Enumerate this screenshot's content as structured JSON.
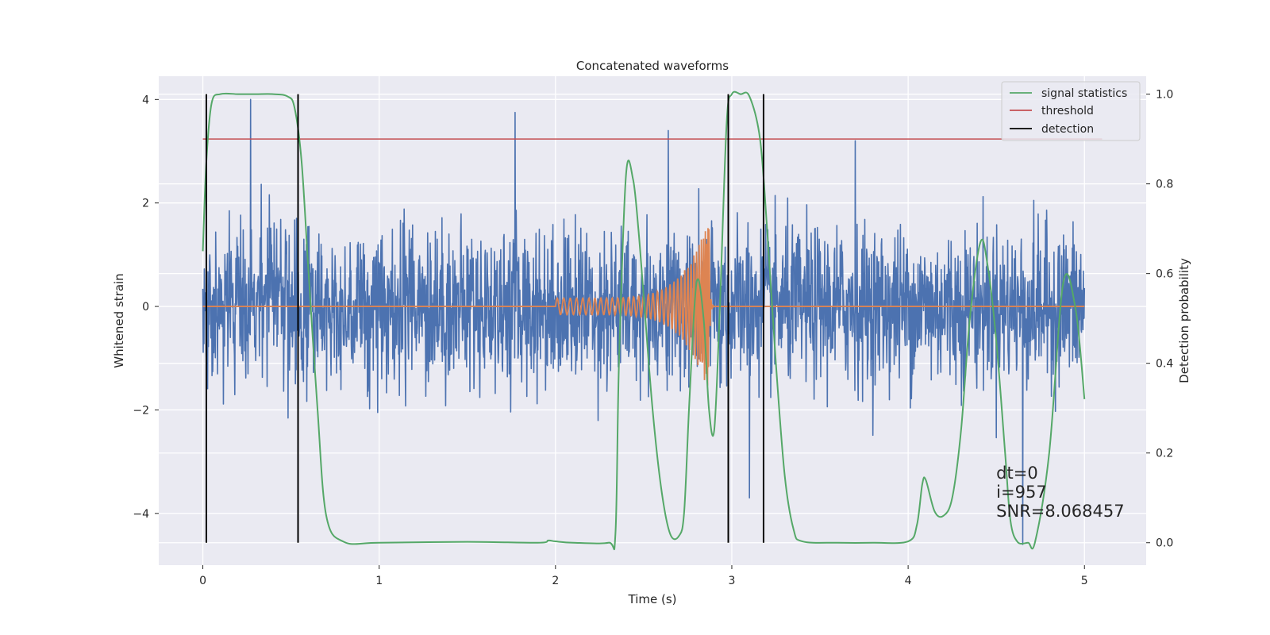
{
  "chart_data": {
    "type": "line",
    "title": "Concatenated waveforms",
    "xlabel": "Time (s)",
    "ylabel_left": "Whitened strain",
    "ylabel_right": "Detection probability",
    "xlim": [
      -0.25,
      5.35
    ],
    "ylim_left": [
      -5.0,
      4.45
    ],
    "ylim_right": [
      -0.05,
      1.04
    ],
    "x_ticks": [
      0,
      1,
      2,
      3,
      4,
      5
    ],
    "x_tick_labels": [
      "0",
      "1",
      "2",
      "3",
      "4",
      "5"
    ],
    "y_left_ticks": [
      -4,
      -2,
      0,
      2,
      4
    ],
    "y_left_tick_labels": [
      "−4",
      "−2",
      "0",
      "2",
      "4"
    ],
    "y_right_ticks": [
      0.0,
      0.2,
      0.4,
      0.6,
      0.8,
      1.0
    ],
    "y_right_tick_labels": [
      "0.0",
      "0.2",
      "0.4",
      "0.6",
      "0.8",
      "1.0"
    ],
    "grid": true,
    "legend_placement": "top-right",
    "legend": [
      {
        "label": "signal statistics",
        "color": "#55a868"
      },
      {
        "label": "threshold",
        "color": "#c44e52"
      },
      {
        "label": "detection",
        "color": "#000000"
      }
    ],
    "noise_series": {
      "color": "#4c72b0",
      "x_range": [
        0,
        5
      ],
      "typical_amplitude": 0.75,
      "peaks": [
        {
          "x": 0.27,
          "y": 4.0
        },
        {
          "x": 1.77,
          "y": 3.75
        },
        {
          "x": 2.64,
          "y": 3.4
        },
        {
          "x": 3.7,
          "y": 3.2
        },
        {
          "x": 4.65,
          "y": -4.6
        },
        {
          "x": 3.1,
          "y": -3.7
        }
      ]
    },
    "chirp_series": {
      "color": "#dd8452",
      "start_x": 2.0,
      "merger_x": 2.87,
      "end_x": 2.9,
      "peak_amplitude": 1.7
    },
    "signal_statistics": {
      "color": "#55a868",
      "axis": "right",
      "x": [
        0.0,
        0.02,
        0.05,
        0.1,
        0.2,
        0.3,
        0.4,
        0.48,
        0.52,
        0.56,
        0.6,
        0.65,
        0.7,
        0.8,
        1.0,
        1.5,
        1.9,
        1.96,
        2.0,
        2.1,
        2.3,
        2.34,
        2.36,
        2.4,
        2.44,
        2.47,
        2.5,
        2.55,
        2.6,
        2.65,
        2.7,
        2.73,
        2.76,
        2.8,
        2.84,
        2.87,
        2.9,
        2.93,
        2.97,
        3.0,
        3.05,
        3.1,
        3.16,
        3.2,
        3.25,
        3.3,
        3.35,
        3.4,
        3.6,
        3.8,
        4.0,
        4.05,
        4.08,
        4.1,
        4.15,
        4.2,
        4.25,
        4.3,
        4.35,
        4.41,
        4.45,
        4.5,
        4.55,
        4.58,
        4.62,
        4.68,
        4.72,
        4.8,
        4.88,
        4.95,
        5.0
      ],
      "y": [
        0.65,
        0.85,
        0.98,
        1.0,
        1.0,
        1.0,
        1.0,
        0.995,
        0.97,
        0.85,
        0.6,
        0.3,
        0.06,
        0.002,
        0.0,
        0.002,
        0.0,
        0.005,
        0.003,
        0.0,
        0.0,
        0.02,
        0.4,
        0.82,
        0.81,
        0.7,
        0.55,
        0.3,
        0.12,
        0.02,
        0.015,
        0.07,
        0.32,
        0.58,
        0.5,
        0.3,
        0.25,
        0.5,
        0.93,
        1.0,
        1.0,
        0.995,
        0.9,
        0.7,
        0.4,
        0.15,
        0.03,
        0.003,
        0.0,
        0.0,
        0.003,
        0.04,
        0.13,
        0.14,
        0.07,
        0.06,
        0.1,
        0.25,
        0.5,
        0.67,
        0.62,
        0.45,
        0.2,
        0.05,
        0.002,
        0.0,
        0.002,
        0.2,
        0.58,
        0.52,
        0.32
      ]
    },
    "threshold": {
      "color": "#c44e52",
      "axis": "right",
      "value": 0.9,
      "x_range": [
        0,
        5.1
      ]
    },
    "detections": {
      "color": "#000000",
      "x": [
        0.02,
        0.54,
        2.98,
        3.18
      ],
      "y_range_right": [
        0.0,
        1.0
      ]
    },
    "annotation": {
      "lines": [
        "dt=0",
        "i=957",
        "SNR=8.068457"
      ],
      "x": 4.5,
      "y_right": 0.1
    }
  }
}
